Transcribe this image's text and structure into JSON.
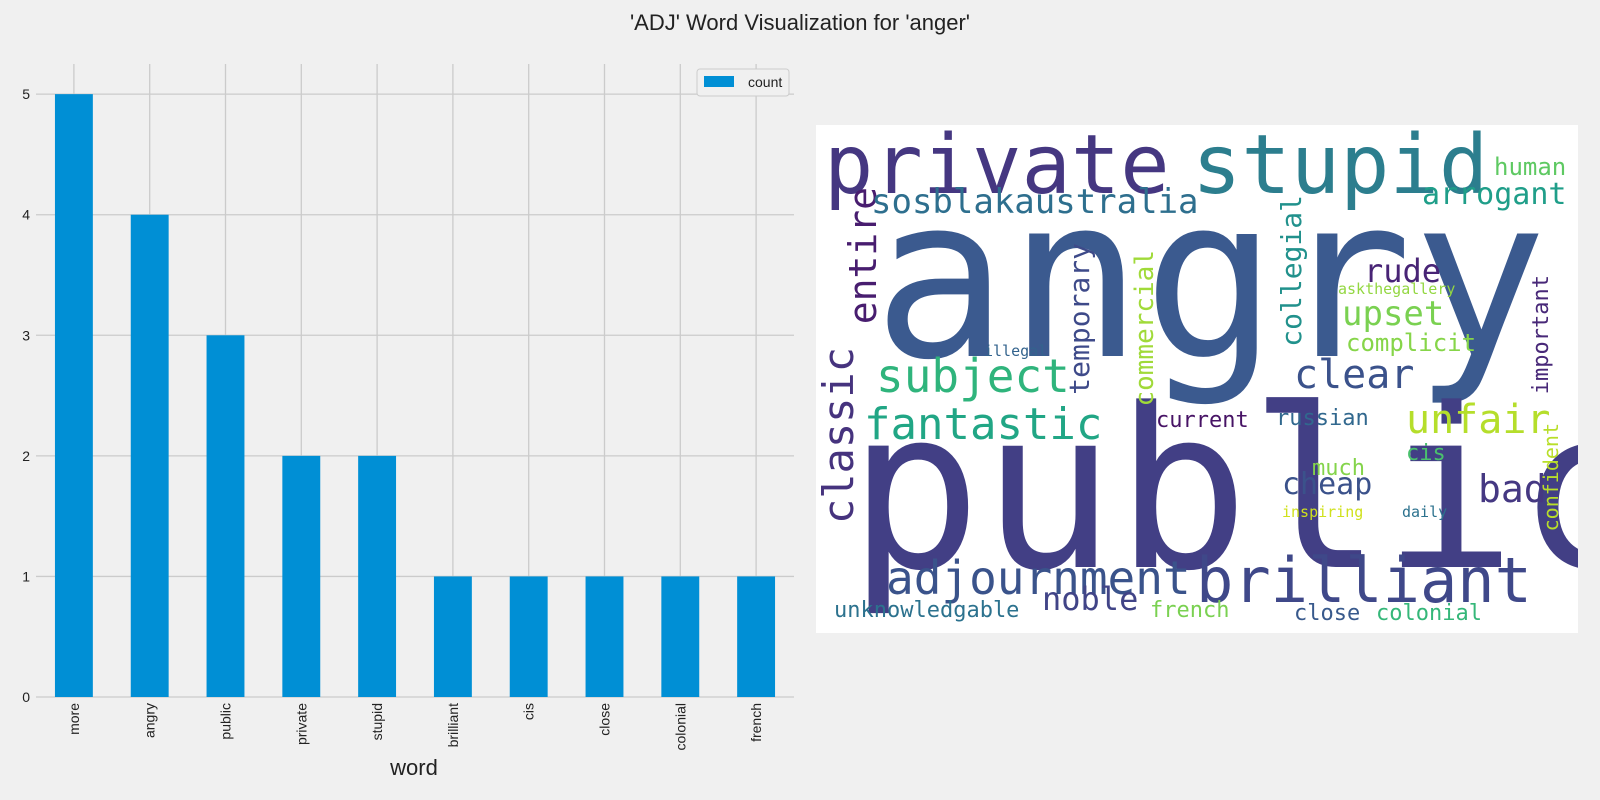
{
  "title": "'ADJ' Word Visualization for 'anger'",
  "colors": {
    "bar": "#008fd5",
    "background": "#f0f0f0",
    "grid": "#cbcbcb"
  },
  "chart_data": {
    "type": "bar",
    "categories": [
      "more",
      "angry",
      "public",
      "private",
      "stupid",
      "brilliant",
      "cis",
      "close",
      "colonial",
      "french"
    ],
    "series": [
      {
        "name": "count",
        "values": [
          5,
          4,
          3,
          2,
          2,
          1,
          1,
          1,
          1,
          1
        ]
      }
    ],
    "xlabel": "word",
    "ylabel": "",
    "ylim": [
      0,
      5.25
    ],
    "yticks": [
      0,
      1,
      2,
      3,
      4,
      5
    ],
    "grid": true,
    "legend": "top-right"
  },
  "wordcloud": {
    "words": [
      {
        "text": "angry",
        "color": "#3b5a8f"
      },
      {
        "text": "public",
        "color": "#423f85"
      },
      {
        "text": "private",
        "color": "#453781"
      },
      {
        "text": "stupid",
        "color": "#2c7e8e"
      },
      {
        "text": "brilliant",
        "color": "#3f4889"
      },
      {
        "text": "adjournment",
        "color": "#3a538b"
      },
      {
        "text": "subject",
        "color": "#2fb47c"
      },
      {
        "text": "fantastic",
        "color": "#21a685"
      },
      {
        "text": "classic",
        "color": "#46337e"
      },
      {
        "text": "entire",
        "color": "#481d6f"
      },
      {
        "text": "sosblakaustralia",
        "color": "#2e6f8e"
      },
      {
        "text": "clear",
        "color": "#3b528b"
      },
      {
        "text": "unfair",
        "color": "#b5de2b"
      },
      {
        "text": "upset",
        "color": "#7ad151"
      },
      {
        "text": "rude",
        "color": "#482475"
      },
      {
        "text": "arrogant",
        "color": "#1f9e89"
      },
      {
        "text": "human",
        "color": "#5ec962"
      },
      {
        "text": "collegial",
        "color": "#21918c"
      },
      {
        "text": "temporary",
        "color": "#3e4a89"
      },
      {
        "text": "commercial",
        "color": "#a0da39"
      },
      {
        "text": "bad",
        "color": "#453882"
      },
      {
        "text": "cheap",
        "color": "#3b528b"
      },
      {
        "text": "noble",
        "color": "#414487"
      },
      {
        "text": "unknowledgable",
        "color": "#2c728e"
      },
      {
        "text": "french",
        "color": "#7ad151"
      },
      {
        "text": "close",
        "color": "#38598c"
      },
      {
        "text": "colonial",
        "color": "#35b779"
      },
      {
        "text": "complicit",
        "color": "#86d549"
      },
      {
        "text": "important",
        "color": "#482878"
      },
      {
        "text": "confident",
        "color": "#b8de29"
      },
      {
        "text": "current",
        "color": "#471365"
      },
      {
        "text": "russian",
        "color": "#31688e"
      },
      {
        "text": "much",
        "color": "#84d44b"
      },
      {
        "text": "cis",
        "color": "#4ac16d"
      },
      {
        "text": "daily",
        "color": "#2c728e"
      },
      {
        "text": "inspiring",
        "color": "#d0e11c"
      },
      {
        "text": "illegal",
        "color": "#33638d"
      },
      {
        "text": "askthegallery",
        "color": "#93d741"
      }
    ]
  }
}
